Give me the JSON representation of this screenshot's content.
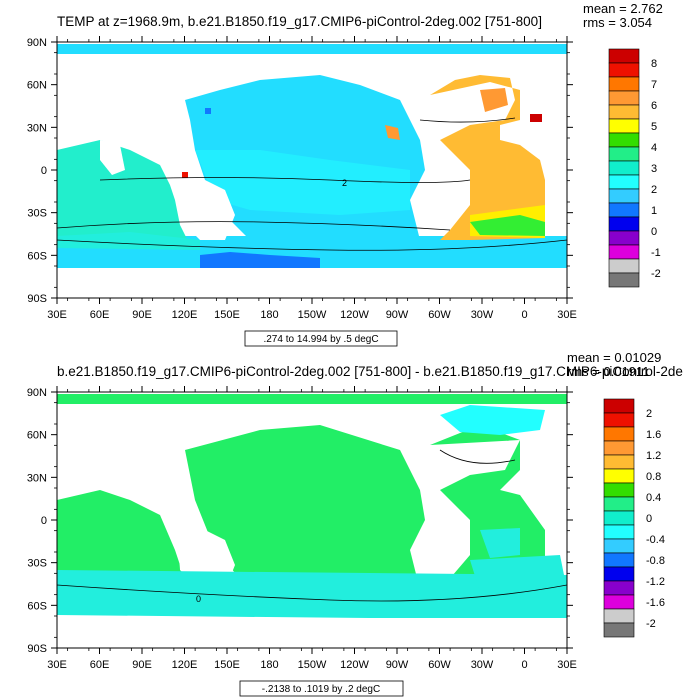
{
  "panel1": {
    "title": "TEMP at z=1968.9m, b.e21.B1850.f19_g17.CMIP6-piControl-2deg.002 [751-800]",
    "mean_text": "mean = 2.762",
    "rms_text": "rms = 3.054",
    "range_text": ".274 to 14.994 by .5 degC",
    "contour_label": "2",
    "colorbar": {
      "labels": [
        "8",
        "7",
        "6",
        "5",
        "4",
        "3",
        "2",
        "1",
        "0",
        "-1",
        "-2"
      ],
      "colors": [
        "#cc0000",
        "#ee1100",
        "#ff7700",
        "#ff9933",
        "#ffbb33",
        "#ffff00",
        "#33dd00",
        "#22ee88",
        "#11eecc",
        "#22ffff",
        "#33ccff",
        "#1177ff",
        "#0000ee",
        "#8800cc",
        "#dd00dd",
        "#cccccc",
        "#777777"
      ]
    }
  },
  "panel2": {
    "title": "b.e21.B1850.f19_g17.CMIP6-piControl-2deg.002 [751-800] - b.e21.B1850.f19_g17.CMIP6-piControl-2de",
    "mean_text": "mean = 0.01029",
    "rms_text": "rms = 0.01911",
    "range_text": "-.2138 to .1019 by .2 degC",
    "contour_label": "0",
    "colorbar": {
      "labels": [
        "2",
        "1.6",
        "1.2",
        "0.8",
        "0.4",
        "0",
        "-0.4",
        "-0.8",
        "-1.2",
        "-1.6",
        "-2"
      ],
      "colors": [
        "#cc0000",
        "#ee1100",
        "#ff7700",
        "#ff9933",
        "#ffbb33",
        "#ffff00",
        "#33dd00",
        "#22ee88",
        "#11eecc",
        "#22ffff",
        "#33ccff",
        "#1177ff",
        "#0000ee",
        "#8800cc",
        "#dd00dd",
        "#cccccc",
        "#777777"
      ]
    }
  },
  "axes": {
    "lon_labels": [
      "30E",
      "60E",
      "90E",
      "120E",
      "150E",
      "180",
      "150W",
      "120W",
      "90W",
      "60W",
      "30W",
      "0",
      "30E"
    ],
    "lat_labels": [
      "90N",
      "60N",
      "30N",
      "0",
      "30S",
      "60S",
      "90S"
    ]
  },
  "colors": {
    "land": "#ffffff",
    "p1_cyan": "#22ddff",
    "p1_teal": "#22eecc",
    "p1_orange": "#ffbb33",
    "p1_yellow": "#ffee00",
    "p1_green": "#33ee33",
    "p1_blue": "#1177ff",
    "p2_green": "#22ee66",
    "p2_teal": "#22eedd",
    "p2_cyan": "#22ffff"
  }
}
